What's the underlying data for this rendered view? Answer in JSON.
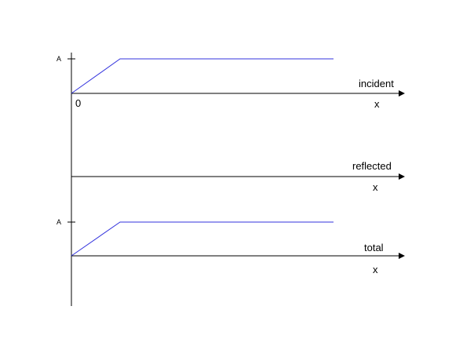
{
  "colors": {
    "axis": "#000000",
    "signal": "#3333dd",
    "background": "#ffffff"
  },
  "origin_label": "0",
  "panels": [
    {
      "id": "incident",
      "name": "incident",
      "x_label": "x",
      "y_tick_label": "A",
      "has_signal": true
    },
    {
      "id": "reflected",
      "name": "reflected",
      "x_label": "x",
      "y_tick_label": "",
      "has_signal": false
    },
    {
      "id": "total",
      "name": "total",
      "x_label": "x",
      "y_tick_label": "A",
      "has_signal": true
    }
  ]
}
